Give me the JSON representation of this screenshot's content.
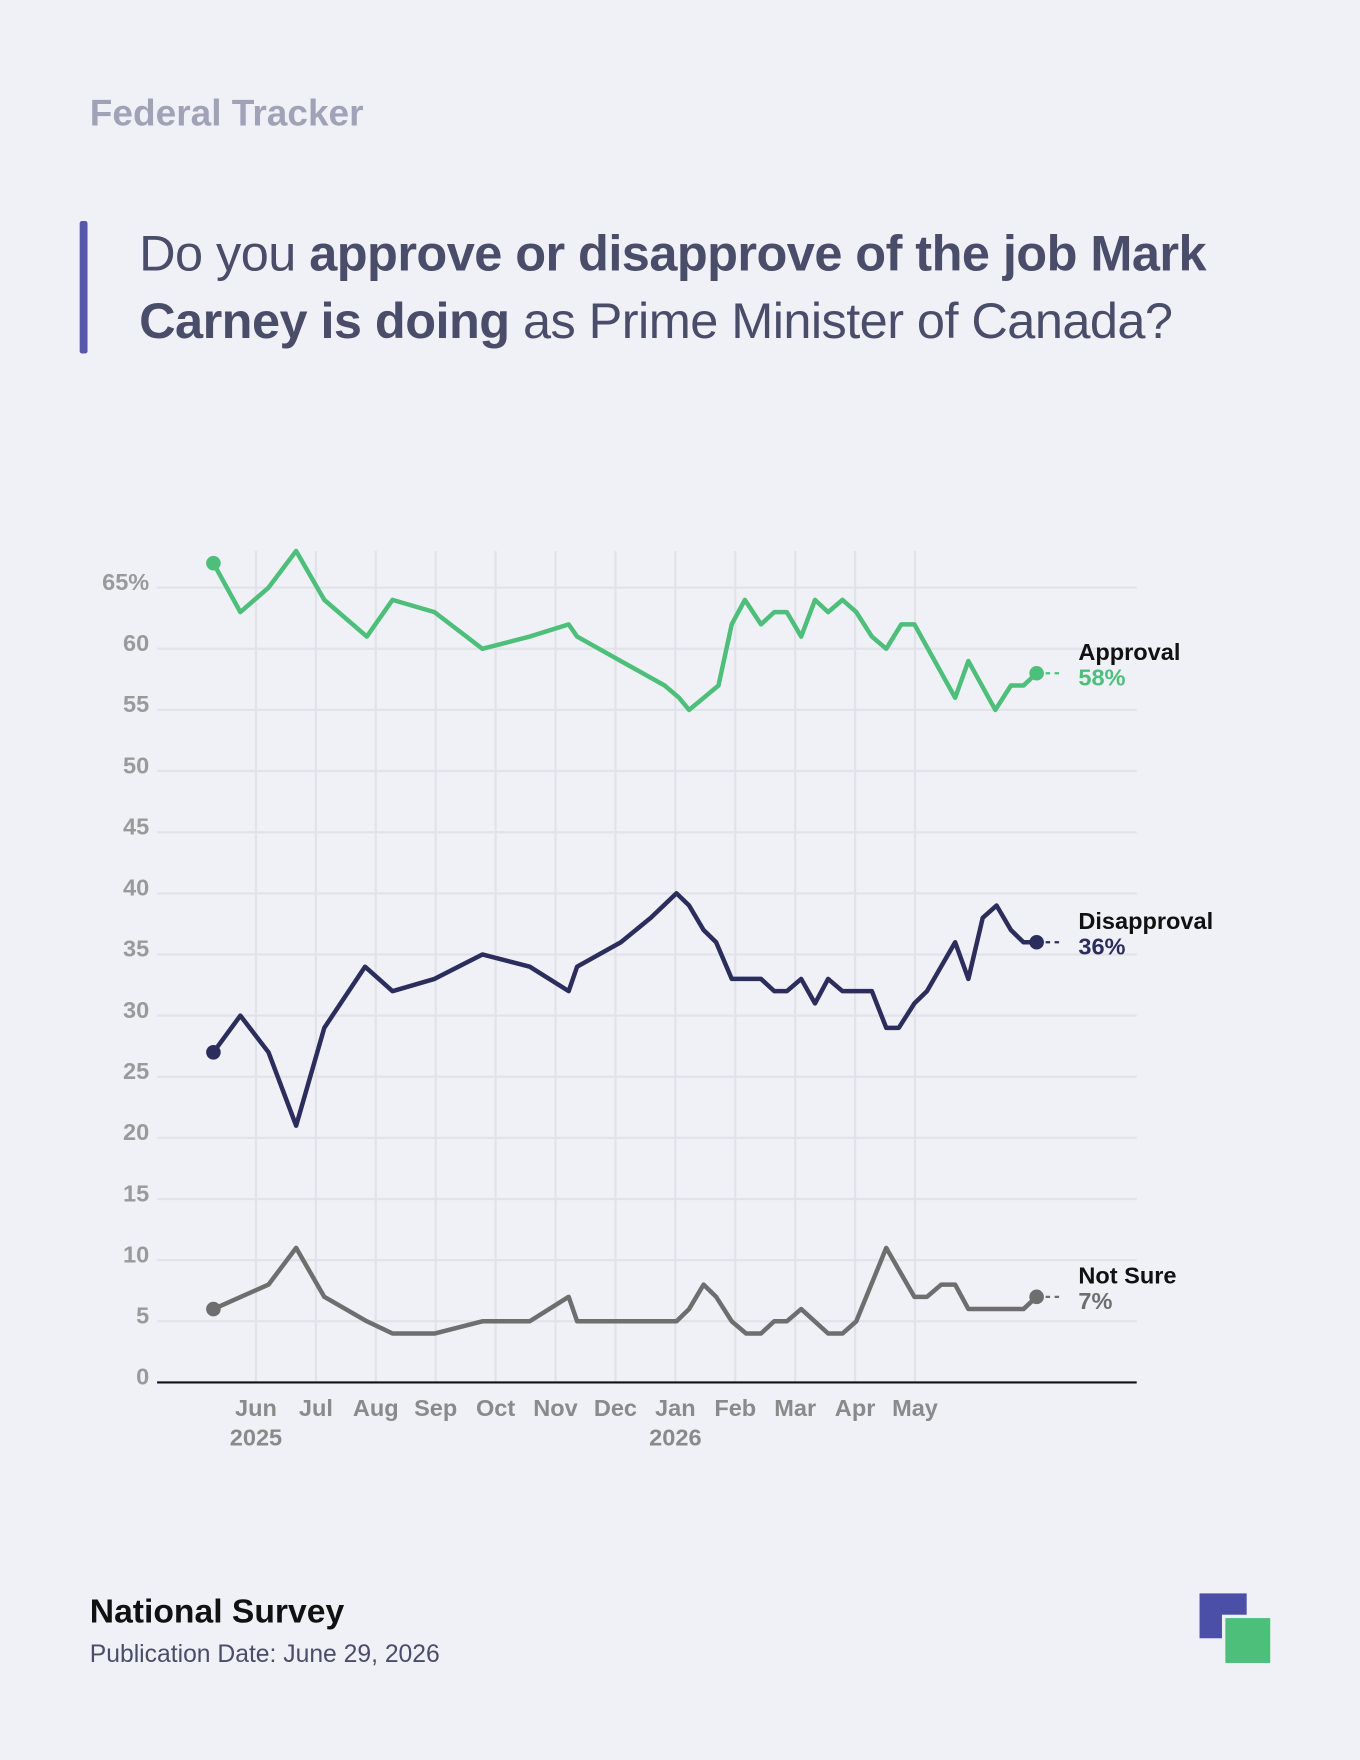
{
  "header": {
    "kicker": "Federal Tracker",
    "question": [
      "Do you ",
      "approve or disapprove of the job Mark Carney is doing",
      " as Prime Minister of Canada?"
    ]
  },
  "chart_data": {
    "type": "line",
    "xlim": [
      4.35,
      20.7
    ],
    "ylim": [
      0,
      68
    ],
    "yticks": [
      0,
      5,
      10,
      15,
      20,
      25,
      30,
      35,
      40,
      45,
      50,
      55,
      60,
      {
        "value": 65,
        "label": "65%"
      }
    ],
    "xticks": [
      {
        "value": 6,
        "label": "Jun"
      },
      {
        "value": 7,
        "label": "Jul"
      },
      {
        "value": 8,
        "label": "Aug"
      },
      {
        "value": 9,
        "label": "Sep"
      },
      {
        "value": 10,
        "label": "Oct"
      },
      {
        "value": 11,
        "label": "Nov"
      },
      {
        "value": 12,
        "label": "Dec"
      },
      {
        "value": 13,
        "label": "Jan"
      },
      {
        "value": 14,
        "label": "Feb"
      },
      {
        "value": 15,
        "label": "Mar"
      },
      {
        "value": 16,
        "label": "Apr"
      },
      {
        "value": 17,
        "label": "May"
      }
    ],
    "xtick_years": [
      {
        "value": 6,
        "label": "2025"
      },
      {
        "value": 13,
        "label": "2026"
      }
    ],
    "grid": true,
    "series": [
      {
        "name": "Approval",
        "color": "#4dbf7a",
        "x": [
          5.29,
          5.74,
          6.21,
          6.67,
          7.14,
          7.85,
          8.28,
          8.98,
          9.78,
          10.57,
          11.22,
          11.36,
          12.09,
          12.82,
          13.06,
          13.23,
          13.72,
          13.94,
          14.16,
          14.43,
          14.65,
          14.86,
          15.1,
          15.33,
          15.55,
          15.79,
          16.02,
          16.28,
          16.52,
          16.77,
          16.99,
          17.67,
          17.89,
          18.34,
          18.6,
          18.81,
          19.03
        ],
        "values": [
          67,
          63,
          65,
          68,
          64,
          61,
          64,
          63,
          60,
          61,
          62,
          61,
          59,
          57,
          56,
          55,
          57,
          62,
          64,
          62,
          63,
          63,
          61,
          64,
          63,
          64,
          63,
          61,
          60,
          62,
          62,
          56,
          59,
          55,
          57,
          57,
          58
        ],
        "value_labels": [
          null,
          null,
          null,
          null,
          null,
          null,
          null,
          null,
          null,
          null,
          null,
          null,
          null,
          null,
          null,
          null,
          null,
          null,
          null,
          null,
          null,
          null,
          null,
          null,
          null,
          null,
          null,
          null,
          null,
          null,
          null,
          null,
          null,
          null,
          null,
          null,
          "58%"
        ]
      },
      {
        "name": "Disapproval",
        "color": "#2b2d5c",
        "x": [
          5.29,
          5.74,
          6.21,
          6.67,
          7.14,
          7.82,
          8.28,
          8.98,
          9.78,
          10.57,
          11.22,
          11.36,
          12.09,
          12.59,
          13.02,
          13.23,
          13.47,
          13.68,
          13.94,
          14.43,
          14.65,
          14.86,
          15.1,
          15.33,
          15.55,
          15.79,
          16.02,
          16.28,
          16.52,
          16.73,
          16.99,
          17.2,
          17.67,
          17.89,
          18.13,
          18.36,
          18.6,
          18.81,
          19.03
        ],
        "values": [
          27,
          30,
          27,
          21,
          29,
          34,
          32,
          33,
          35,
          34,
          32,
          34,
          36,
          38,
          40,
          39,
          37,
          36,
          33,
          33,
          32,
          32,
          33,
          31,
          33,
          32,
          32,
          32,
          29,
          29,
          31,
          32,
          36,
          33,
          38,
          39,
          37,
          36,
          36
        ],
        "value_labels": [
          null,
          null,
          null,
          null,
          null,
          null,
          null,
          null,
          null,
          null,
          null,
          null,
          null,
          null,
          null,
          null,
          null,
          null,
          null,
          null,
          null,
          null,
          null,
          null,
          null,
          null,
          null,
          null,
          null,
          null,
          null,
          null,
          null,
          null,
          null,
          null,
          null,
          null,
          "36%"
        ]
      },
      {
        "name": "Not Sure",
        "color": "#6e6e6e",
        "x": [
          5.29,
          6.21,
          6.67,
          7.14,
          7.85,
          8.28,
          8.98,
          9.78,
          10.57,
          11.22,
          11.36,
          12.09,
          12.59,
          13.02,
          13.23,
          13.47,
          13.68,
          13.94,
          14.18,
          14.43,
          14.65,
          14.86,
          15.1,
          15.55,
          15.79,
          16.02,
          16.52,
          16.99,
          17.2,
          17.44,
          17.67,
          17.89,
          18.34,
          18.6,
          18.81,
          19.03
        ],
        "values": [
          6,
          8,
          11,
          7,
          5,
          4,
          4,
          5,
          5,
          7,
          5,
          5,
          5,
          5,
          6,
          8,
          7,
          5,
          4,
          4,
          5,
          5,
          6,
          4,
          4,
          5,
          11,
          7,
          7,
          8,
          8,
          6,
          6,
          6,
          6,
          7
        ],
        "value_labels": [
          null,
          null,
          null,
          null,
          null,
          null,
          null,
          null,
          null,
          null,
          null,
          null,
          null,
          null,
          null,
          null,
          null,
          null,
          null,
          null,
          null,
          null,
          null,
          null,
          null,
          null,
          null,
          null,
          null,
          null,
          null,
          null,
          null,
          null,
          null,
          "7%"
        ]
      }
    ]
  },
  "footer": {
    "source": "National Survey",
    "date": "Publication Date: June 29, 2026"
  }
}
